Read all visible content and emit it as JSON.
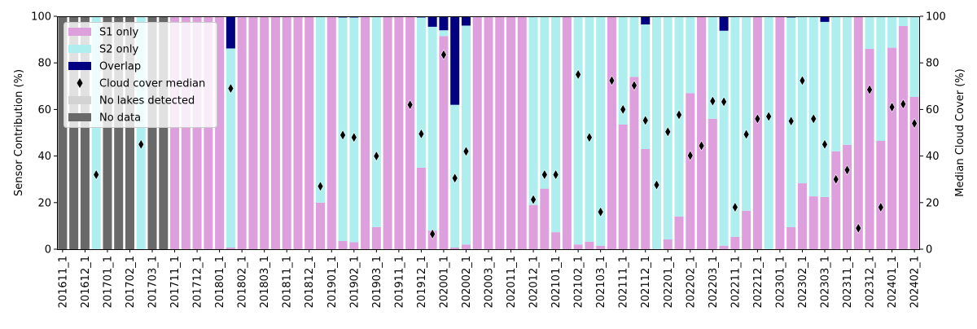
{
  "chart_data": {
    "type": "bar",
    "stacked": true,
    "ylabel": "Sensor Contribution (%)",
    "ylabel_right": "Median Cloud Cover (%)",
    "ylim": [
      0,
      100
    ],
    "ylim_right": [
      0,
      100
    ],
    "yticks": [
      "0",
      "20",
      "40",
      "60",
      "80",
      "100"
    ],
    "legend_placement": "top-left",
    "legend": [
      {
        "label": "S1 only",
        "kind": "patch",
        "color": "#dda0dd"
      },
      {
        "label": "S2 only",
        "kind": "patch",
        "color": "#afeeee"
      },
      {
        "label": "Overlap",
        "kind": "patch",
        "color": "#000080"
      },
      {
        "label": "Cloud cover median",
        "kind": "marker",
        "color": "#000000"
      },
      {
        "label": "No lakes detected",
        "kind": "patch",
        "color": "#d3d3d3"
      },
      {
        "label": "No data",
        "kind": "patch",
        "color": "#696969"
      }
    ],
    "tick_labels": [
      "201611_1",
      "201612_1",
      "201701_1",
      "201702_1",
      "201703_1",
      "201711_1",
      "201712_1",
      "201801_1",
      "201802_1",
      "201803_1",
      "201811_1",
      "201812_1",
      "201901_1",
      "201902_1",
      "201903_1",
      "201911_1",
      "201912_1",
      "202001_1",
      "202002_1",
      "202003_1",
      "202011_1",
      "202012_1",
      "202101_1",
      "202102_1",
      "202103_1",
      "202111_1",
      "202112_1",
      "202201_1",
      "202202_1",
      "202203_1",
      "202211_1",
      "202212_1",
      "202301_1",
      "202302_1",
      "202303_1",
      "202311_1",
      "202312_1",
      "202401_1",
      "202402_1"
    ],
    "bar_count": 77,
    "series": [
      {
        "name": "S1 only",
        "values": [
          0,
          0,
          0,
          0,
          0,
          0,
          0,
          0,
          0,
          0,
          100,
          100,
          100,
          100,
          100,
          0.7,
          100,
          100,
          100,
          100,
          100,
          100,
          100,
          20,
          100,
          3.5,
          3,
          100,
          9.5,
          100,
          100,
          100,
          35,
          8,
          91.5,
          0.7,
          2,
          100,
          100,
          100,
          100,
          100,
          19,
          26,
          7.3,
          100,
          2,
          3.2,
          1.5,
          100,
          53.5,
          74,
          43,
          0,
          4.2,
          14,
          67,
          100,
          56,
          1.5,
          5.3,
          16.5,
          100,
          0,
          100,
          9.5,
          28.3,
          22.7,
          22.4,
          42,
          44.8,
          100,
          86,
          46.5,
          86.5,
          95.8,
          65.4
        ]
      },
      {
        "name": "S2 only",
        "values": [
          0,
          0,
          0,
          100,
          0,
          0,
          0,
          100,
          0,
          0,
          0,
          0,
          0,
          0,
          0,
          85.5,
          0,
          0,
          0,
          0,
          0,
          0,
          0,
          80,
          0,
          96,
          96.5,
          0,
          90.5,
          0,
          0,
          0,
          64.5,
          87.5,
          2.5,
          61.3,
          94,
          0,
          0,
          0,
          0,
          0,
          81,
          74,
          92.7,
          0,
          98,
          96.8,
          98.5,
          0,
          46.5,
          26,
          53.5,
          100,
          95.8,
          86,
          33,
          0,
          44,
          92.3,
          94.7,
          83.5,
          0,
          100,
          0,
          90,
          71.7,
          77.3,
          75.2,
          58,
          55.2,
          0,
          14,
          53.5,
          13.5,
          4.2,
          34.6
        ]
      },
      {
        "name": "Overlap",
        "values": [
          0,
          0,
          0,
          0,
          0,
          0,
          0,
          0,
          0,
          0,
          0,
          0,
          0,
          0,
          0,
          13.8,
          0,
          0,
          0,
          0,
          0,
          0,
          0,
          0,
          0,
          0.5,
          0.5,
          0,
          0,
          0,
          0,
          0,
          0.5,
          4.5,
          6,
          38,
          4,
          0,
          0,
          0,
          0,
          0,
          0,
          0,
          0,
          0,
          0,
          0,
          0,
          0,
          0,
          0,
          3.5,
          0,
          0,
          0,
          0,
          0,
          0,
          6.2,
          0,
          0,
          0,
          0,
          0,
          0.5,
          0,
          0,
          2.4,
          0,
          0,
          0,
          0,
          0,
          0,
          0,
          0
        ]
      },
      {
        "name": "No lakes detected",
        "values": [
          0,
          0,
          0,
          0,
          0,
          0,
          0,
          0,
          0,
          0,
          0,
          0,
          0,
          0,
          0,
          0,
          0,
          0,
          0,
          0,
          0,
          0,
          0,
          0,
          0,
          0,
          0,
          0,
          0,
          0,
          0,
          0,
          0,
          0,
          0,
          0,
          0,
          0,
          0,
          0,
          0,
          0,
          0,
          0,
          0,
          0,
          0,
          0,
          0,
          0,
          0,
          0,
          0,
          0,
          0,
          0,
          0,
          0,
          0,
          0,
          0,
          0,
          0,
          0,
          0,
          0,
          0,
          0,
          0,
          0,
          0,
          0,
          0,
          0,
          0,
          0,
          0
        ]
      },
      {
        "name": "No data",
        "values": [
          100,
          100,
          100,
          0,
          100,
          100,
          100,
          0,
          100,
          100,
          0,
          0,
          0,
          0,
          0,
          0,
          0,
          0,
          0,
          0,
          0,
          0,
          0,
          0,
          0,
          0,
          0,
          0,
          0,
          0,
          0,
          0,
          0,
          0,
          0,
          0,
          0,
          0,
          0,
          0,
          0,
          0,
          0,
          0,
          0,
          0,
          0,
          0,
          0,
          0,
          0,
          0,
          0,
          0,
          0,
          0,
          0,
          0,
          0,
          0,
          0,
          0,
          0,
          0,
          0,
          0,
          0,
          0,
          0,
          0,
          0,
          0,
          0,
          0,
          0,
          0,
          0
        ]
      }
    ],
    "cloud_cover_median": [
      null,
      null,
      null,
      32,
      null,
      null,
      null,
      45,
      null,
      null,
      null,
      null,
      null,
      null,
      null,
      69,
      null,
      null,
      null,
      null,
      null,
      null,
      null,
      27,
      null,
      49,
      48,
      null,
      40,
      null,
      null,
      62,
      49.5,
      6.5,
      83.5,
      30.5,
      42,
      null,
      null,
      null,
      null,
      null,
      21.3,
      32,
      32,
      null,
      75,
      48,
      16,
      72.4,
      60,
      70.3,
      55.3,
      27.6,
      50.4,
      57.7,
      40.2,
      44.4,
      63.6,
      63.3,
      18,
      49.3,
      56,
      57,
      null,
      55,
      72.4,
      56,
      45,
      30,
      34,
      9,
      68.5,
      18,
      61,
      62.3,
      54
    ]
  }
}
